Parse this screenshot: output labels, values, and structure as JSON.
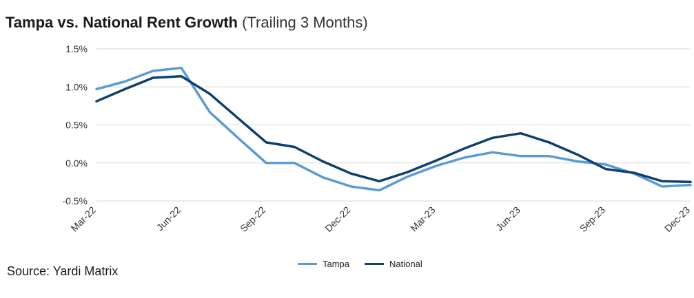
{
  "title": {
    "main": "Tampa vs. National Rent Growth",
    "sub": "(Trailing 3 Months)"
  },
  "source": "Source: Yardi Matrix",
  "chart_data": {
    "type": "line",
    "title": "Tampa vs. National Rent Growth (Trailing 3 Months)",
    "x": [
      "Mar-22",
      "Apr-22",
      "May-22",
      "Jun-22",
      "Jul-22",
      "Aug-22",
      "Sep-22",
      "Oct-22",
      "Nov-22",
      "Dec-22",
      "Jan-23",
      "Feb-23",
      "Mar-23",
      "Apr-23",
      "May-23",
      "Jun-23",
      "Jul-23",
      "Aug-23",
      "Sep-23",
      "Oct-23",
      "Nov-23",
      "Dec-23"
    ],
    "tick_labels": [
      "Mar-22",
      "Jun-22",
      "Sep-22",
      "Dec-22",
      "Mar-23",
      "Jun-23",
      "Sep-23",
      "Dec-23"
    ],
    "y_ticks": [
      1.5,
      1.0,
      0.5,
      0.0,
      -0.5
    ],
    "y_tick_labels": [
      "1.5%",
      "1.0%",
      "0.5%",
      "0.0%",
      "-0.5%"
    ],
    "ylim": [
      -0.5,
      1.5
    ],
    "grid": "horizontal",
    "legend_position": "bottom-center",
    "series": [
      {
        "name": "Tampa",
        "color": "#5b9bd5",
        "values": [
          0.97,
          1.07,
          1.21,
          1.25,
          0.67,
          0.33,
          0.0,
          0.0,
          -0.19,
          -0.31,
          -0.36,
          -0.18,
          -0.04,
          0.07,
          0.14,
          0.09,
          0.09,
          0.02,
          -0.02,
          -0.14,
          -0.31,
          -0.29
        ]
      },
      {
        "name": "National",
        "color": "#0e3f6d",
        "values": [
          0.81,
          0.97,
          1.12,
          1.14,
          0.91,
          0.59,
          0.27,
          0.21,
          0.02,
          -0.14,
          -0.24,
          -0.12,
          0.03,
          0.19,
          0.33,
          0.39,
          0.27,
          0.11,
          -0.08,
          -0.13,
          -0.24,
          -0.25
        ]
      }
    ]
  }
}
